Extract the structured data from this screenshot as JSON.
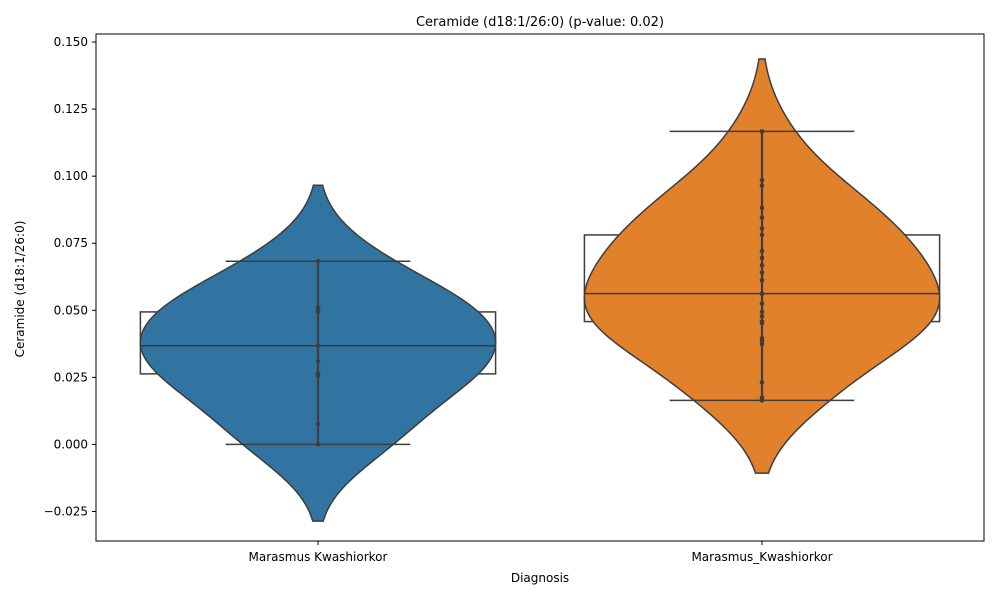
{
  "chart_data": {
    "type": "violin",
    "title": "Ceramide (d18:1/26:0) (p-value: 0.02)",
    "xlabel": "Diagnosis",
    "ylabel": "Ceramide (d18:1/26:0)",
    "ylim": [
      -0.036,
      0.153
    ],
    "yticks": [
      -0.025,
      0.0,
      0.025,
      0.05,
      0.075,
      0.1,
      0.125,
      0.15
    ],
    "ytick_labels": [
      "−0.025",
      "0.000",
      "0.025",
      "0.050",
      "0.075",
      "0.100",
      "0.125",
      "0.150"
    ],
    "grid": false,
    "categories": [
      "Marasmus Kwashiorkor",
      "Marasmus_Kwashiorkor"
    ],
    "series": [
      {
        "category": "Marasmus Kwashiorkor",
        "color": "#3274a1",
        "box": {
          "q1": 0.0263,
          "median": 0.0368,
          "q3": 0.0494,
          "whisker_low": 0.0,
          "whisker_high": 0.0683
        },
        "violin": {
          "min": -0.0286,
          "max": 0.0966
        },
        "points": [
          0.0,
          0.0076,
          0.0257,
          0.0263,
          0.031,
          0.0368,
          0.0494,
          0.0503,
          0.051,
          0.0683
        ]
      },
      {
        "category": "Marasmus_Kwashiorkor",
        "color": "#e1812c",
        "box": {
          "q1": 0.0458,
          "median": 0.0562,
          "q3": 0.0781,
          "whisker_low": 0.0164,
          "whisker_high": 0.1167
        },
        "violin": {
          "min": -0.0107,
          "max": 0.1437
        },
        "points": [
          0.0164,
          0.0174,
          0.0232,
          0.0374,
          0.0386,
          0.0395,
          0.0452,
          0.0458,
          0.0478,
          0.0494,
          0.0525,
          0.0562,
          0.0612,
          0.0641,
          0.0668,
          0.0695,
          0.0721,
          0.0781,
          0.0805,
          0.0846,
          0.0882,
          0.0965,
          0.0985,
          0.1167
        ]
      }
    ]
  }
}
